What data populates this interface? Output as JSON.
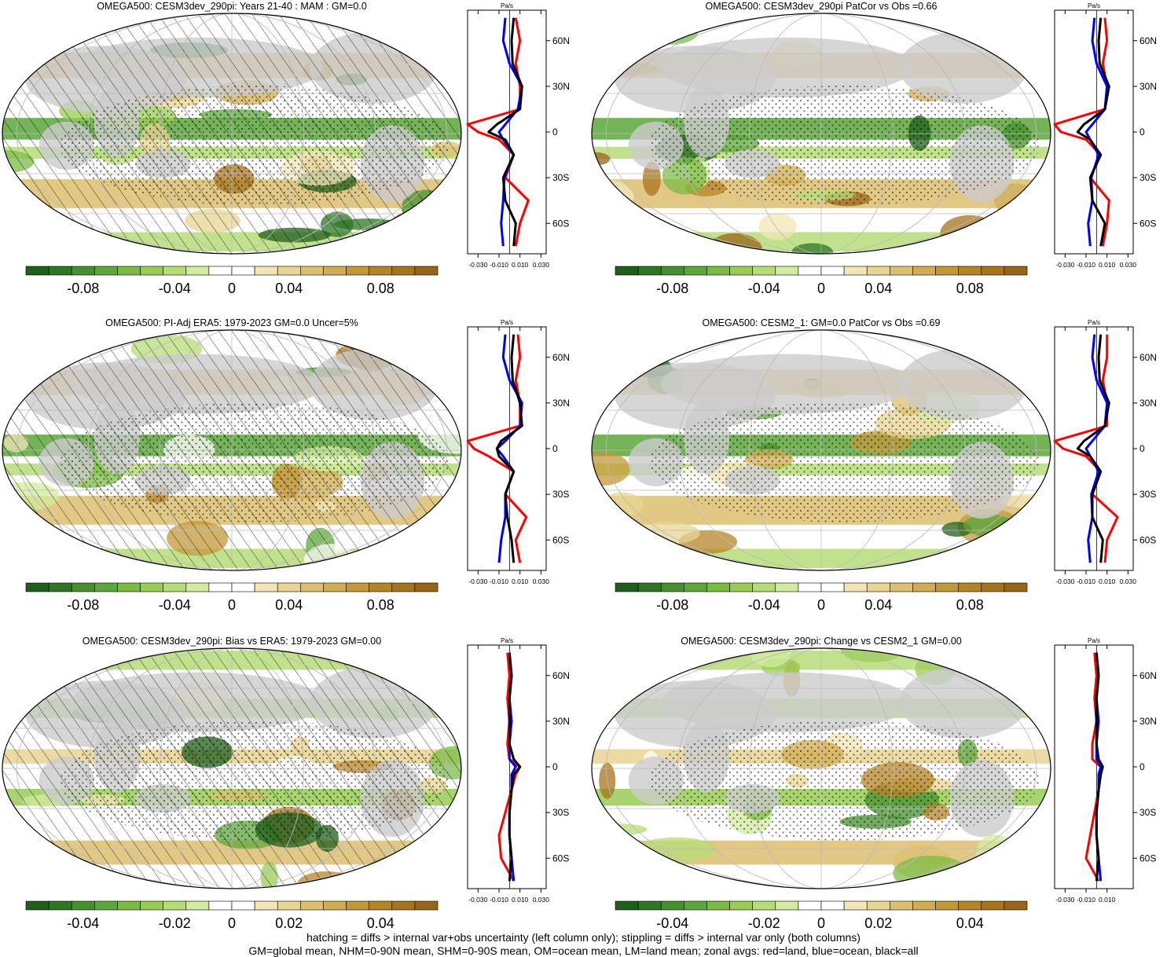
{
  "palette": {
    "colors": [
      "#1f5f1b",
      "#2e7624",
      "#468f2f",
      "#5da63c",
      "#7bbb44",
      "#99cc55",
      "#b6dc78",
      "#d2eb9f",
      "#ffffff",
      "#ffffff",
      "#f2e6b8",
      "#e8d493",
      "#dcc070",
      "#d0ac52",
      "#c39839",
      "#b58427",
      "#a7731d",
      "#986417"
    ],
    "ocean": "#ffffff",
    "land": "#cccccc",
    "red": "#ff0000",
    "blue": "#0000ff",
    "black": "#000000"
  },
  "panels": [
    {
      "id": "p1",
      "title": "OMEGA500: CESM3dev_290pi: Years 21-40 : MAM : GM=0.0",
      "hatch": true,
      "cbar": [
        "-0.08",
        "-0.04",
        "0",
        "0.04",
        "0.08"
      ],
      "zonal_ticks": [
        "-0.030",
        "-0.010",
        "0.010",
        "0.030"
      ],
      "lat_labels": [
        "60N",
        "30N",
        "0",
        "30S",
        "60S"
      ],
      "unit": "Pa/s"
    },
    {
      "id": "p2",
      "title": "OMEGA500: CESM3dev_290pi PatCor vs Obs =0.66",
      "hatch": false,
      "cbar": [
        "-0.08",
        "-0.04",
        "0",
        "0.04",
        "0.08"
      ],
      "zonal_ticks": [
        "-0.030",
        "-0.010",
        "0.010",
        "0.030"
      ],
      "lat_labels": [
        "60N",
        "30N",
        "0",
        "30S",
        "60S"
      ],
      "unit": "Pa/s"
    },
    {
      "id": "p3",
      "title": "OMEGA500: PI-Adj ERA5: 1979-2023 GM=0.0 Uncer=5%",
      "hatch": true,
      "cbar": [
        "-0.08",
        "-0.04",
        "0",
        "0.04",
        "0.08"
      ],
      "zonal_ticks": [
        "-0.030",
        "-0.010",
        "0.010",
        "0.030"
      ],
      "lat_labels": [
        "60N",
        "30N",
        "0",
        "30S",
        "60S"
      ],
      "unit": "Pa/s"
    },
    {
      "id": "p4",
      "title": "OMEGA500: CESM2_1: GM=0.0 PatCor vs Obs =0.69",
      "hatch": false,
      "cbar": [
        "-0.08",
        "-0.04",
        "0",
        "0.04",
        "0.08"
      ],
      "zonal_ticks": [
        "-0.030",
        "-0.010",
        "0.010",
        "0.030"
      ],
      "lat_labels": [
        "60N",
        "30N",
        "0",
        "30S",
        "60S"
      ],
      "unit": "Pa/s"
    },
    {
      "id": "p5",
      "title": "OMEGA500: CESM3dev_290pi: Bias vs ERA5: 1979-2023 GM=0.00",
      "hatch": true,
      "cbar": [
        "-0.04",
        "-0.02",
        "0",
        "0.02",
        "0.04"
      ],
      "zonal_ticks": [
        "-0.030",
        "-0.010",
        "0.010",
        "0.030"
      ],
      "lat_labels": [
        "60N",
        "30N",
        "0",
        "30S",
        "60S"
      ],
      "unit": "Pa/s"
    },
    {
      "id": "p6",
      "title": "OMEGA500: CESM3dev_290pi: Change vs CESM2_1 GM=0.00",
      "hatch": false,
      "cbar": [
        "-0.04",
        "-0.02",
        "0",
        "0.02",
        "0.04"
      ],
      "zonal_ticks": [
        "-0.030",
        "-0.010",
        "0.010"
      ],
      "lat_labels": [
        "60N",
        "30N",
        "0",
        "30S",
        "60S"
      ],
      "unit": "Pa/s"
    }
  ],
  "chart_data": [
    {
      "type": "line",
      "panel": "p1",
      "y_label": "lat",
      "lat": [
        -75,
        -60,
        -45,
        -30,
        -15,
        -5,
        0,
        5,
        15,
        30,
        45,
        60,
        75
      ],
      "series": [
        {
          "values": [
            0.004,
            0.006,
            -0.004,
            -0.006,
            0.004,
            -0.004,
            -0.02,
            -0.012,
            0.01,
            0.012,
            0.003,
            0.002,
            0.004
          ]
        },
        {
          "values": [
            0.006,
            0.01,
            0.018,
            -0.004,
            0.004,
            -0.01,
            -0.03,
            -0.04,
            0.01,
            0.01,
            0.006,
            0.01,
            0.006
          ]
        },
        {
          "values": [
            -0.006,
            -0.008,
            -0.006,
            -0.005,
            0.004,
            -0.006,
            -0.01,
            -0.004,
            0.008,
            0.012,
            0.0,
            -0.006,
            -0.004
          ]
        }
      ]
    },
    {
      "type": "line",
      "panel": "p2",
      "y_label": "lat",
      "lat": [
        -75,
        -60,
        -45,
        -30,
        -15,
        -5,
        0,
        5,
        15,
        30,
        45,
        60,
        75
      ],
      "series": [
        {
          "values": [
            0.004,
            0.008,
            -0.004,
            -0.006,
            0.004,
            -0.006,
            -0.018,
            -0.012,
            0.008,
            0.012,
            0.003,
            0.002,
            0.004
          ]
        },
        {
          "values": [
            0.006,
            0.01,
            0.012,
            -0.006,
            0.004,
            -0.01,
            -0.034,
            -0.04,
            0.008,
            0.01,
            0.006,
            0.01,
            0.008
          ]
        },
        {
          "values": [
            -0.006,
            -0.008,
            -0.004,
            -0.005,
            0.002,
            -0.006,
            -0.01,
            -0.004,
            0.008,
            0.01,
            0.0,
            -0.004,
            -0.002
          ]
        }
      ]
    },
    {
      "type": "line",
      "panel": "p3",
      "y_label": "lat",
      "lat": [
        -75,
        -60,
        -45,
        -30,
        -15,
        -5,
        0,
        5,
        15,
        30,
        45,
        60,
        75
      ],
      "series": [
        {
          "values": [
            0.004,
            0.002,
            -0.002,
            -0.004,
            0.004,
            -0.01,
            -0.012,
            -0.008,
            0.012,
            0.01,
            0.003,
            0.002,
            0.004
          ]
        },
        {
          "values": [
            0.01,
            0.006,
            0.016,
            -0.004,
            0.004,
            -0.02,
            -0.034,
            -0.04,
            0.01,
            0.01,
            0.006,
            0.01,
            0.008
          ]
        },
        {
          "values": [
            -0.01,
            -0.008,
            -0.004,
            -0.004,
            0.004,
            -0.006,
            -0.012,
            -0.004,
            0.01,
            0.012,
            0.0,
            -0.006,
            -0.004
          ]
        }
      ]
    },
    {
      "type": "line",
      "panel": "p4",
      "y_label": "lat",
      "lat": [
        -75,
        -60,
        -45,
        -30,
        -15,
        -5,
        0,
        5,
        15,
        30,
        45,
        60,
        75
      ],
      "series": [
        {
          "values": [
            0.004,
            0.006,
            -0.004,
            -0.004,
            0.004,
            -0.006,
            -0.018,
            -0.012,
            0.008,
            0.012,
            0.003,
            0.002,
            0.004
          ]
        },
        {
          "values": [
            0.008,
            0.01,
            0.02,
            -0.004,
            0.004,
            -0.01,
            -0.032,
            -0.04,
            0.01,
            0.01,
            0.006,
            0.01,
            0.01
          ]
        },
        {
          "values": [
            -0.006,
            -0.008,
            -0.004,
            -0.005,
            0.002,
            -0.006,
            -0.01,
            -0.004,
            0.008,
            0.01,
            0.0,
            -0.004,
            -0.002
          ]
        }
      ]
    },
    {
      "type": "line",
      "panel": "p5",
      "y_label": "lat",
      "lat": [
        -75,
        -60,
        -45,
        -30,
        -15,
        -5,
        0,
        5,
        15,
        30,
        45,
        60,
        75
      ],
      "series": [
        {
          "values": [
            0.0,
            0.002,
            0.0,
            0.0,
            0.002,
            0.004,
            0.01,
            0.004,
            0.0,
            0.0,
            0.0,
            0.002,
            0.0
          ]
        },
        {
          "values": [
            0.004,
            -0.008,
            -0.01,
            -0.004,
            0.002,
            0.006,
            0.01,
            0.0,
            -0.002,
            0.0,
            -0.002,
            0.0,
            -0.002
          ]
        },
        {
          "values": [
            0.004,
            0.002,
            0.0,
            0.0,
            0.002,
            0.002,
            0.006,
            0.0,
            0.0,
            0.002,
            0.0,
            0.002,
            0.0
          ]
        }
      ]
    },
    {
      "type": "line",
      "panel": "p6",
      "y_label": "lat",
      "lat": [
        -75,
        -60,
        -45,
        -30,
        -15,
        -5,
        0,
        5,
        15,
        30,
        45,
        60,
        75
      ],
      "series": [
        {
          "values": [
            0.0,
            0.002,
            0.0,
            0.0,
            0.002,
            0.004,
            0.006,
            0.002,
            0.0,
            0.0,
            0.0,
            0.002,
            0.0
          ]
        },
        {
          "values": [
            0.002,
            -0.01,
            -0.006,
            -0.002,
            0.002,
            0.004,
            0.004,
            -0.004,
            -0.004,
            0.0,
            -0.002,
            0.0,
            -0.002
          ]
        },
        {
          "values": [
            0.004,
            0.002,
            0.0,
            0.0,
            0.002,
            0.002,
            0.004,
            0.0,
            0.0,
            0.002,
            0.0,
            0.002,
            0.0
          ]
        }
      ]
    }
  ],
  "footer": {
    "line1": "hatching = diffs > internal var+obs uncertainty (left column only); stippling = diffs > internal var only (both columns)",
    "line2": "GM=global mean, NHM=0-90N mean, SHM=0-90S mean, OM=ocean mean, LM=land mean; zonal avgs: red=land, blue=ocean, black=all"
  }
}
